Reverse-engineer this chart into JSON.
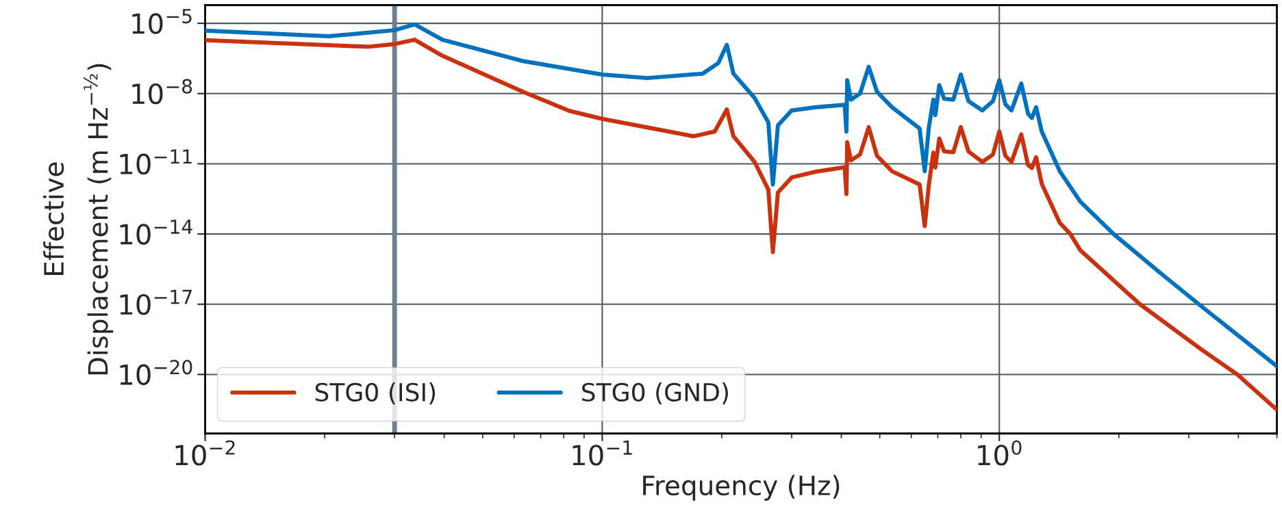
{
  "chart_data": {
    "type": "line",
    "xlabel": "Frequency (Hz)",
    "ylabel": "Effective\nDisplacement (m Hz$^{−½}$)",
    "log": "xy",
    "xlim": [
      0.01,
      5.0
    ],
    "ylim": [
      3e-23,
      6e-05
    ],
    "xticks": [
      {
        "value": 0.01,
        "label": "10$^{−2}$"
      },
      {
        "value": 0.1,
        "label": "10$^{−1}$"
      },
      {
        "value": 1,
        "label": "10$^{0}$"
      }
    ],
    "yticks": [
      {
        "value": 1e-05,
        "label": "10$^{−5}$"
      },
      {
        "value": 1e-08,
        "label": "10$^{−8}$"
      },
      {
        "value": 1e-11,
        "label": "10$^{−11}$"
      },
      {
        "value": 1e-14,
        "label": "10$^{−14}$"
      },
      {
        "value": 1e-17,
        "label": "10$^{−17}$"
      },
      {
        "value": 1e-20,
        "label": "10$^{−20}$"
      }
    ],
    "grid": true,
    "legend": "bottom left",
    "marker": "none",
    "line_style": "solid",
    "ref_lines": [
      {
        "axis": "x",
        "value": 0.03,
        "color": "#708090"
      }
    ],
    "series": [
      {
        "name": "STG0 (ISI)",
        "color": "#c8320f",
        "x": [
          0.01,
          0.0257,
          0.03,
          0.0337,
          0.0396,
          0.0635,
          0.0828,
          0.1,
          0.17,
          0.192,
          0.206,
          0.214,
          0.242,
          0.262,
          0.269,
          0.277,
          0.3,
          0.345,
          0.408,
          0.412,
          0.414,
          0.423,
          0.446,
          0.469,
          0.492,
          0.537,
          0.63,
          0.649,
          0.664,
          0.682,
          0.69,
          0.706,
          0.726,
          0.766,
          0.8,
          0.836,
          0.906,
          0.964,
          1.0,
          1.036,
          1.073,
          1.136,
          1.181,
          1.208,
          1.238,
          1.279,
          1.42,
          1.51,
          1.6,
          2.26,
          3.18,
          3.99,
          4.99
        ],
        "values": [
          1.9e-06,
          1e-06,
          1.3e-06,
          2e-06,
          4.1e-07,
          1.15e-08,
          1.8e-09,
          8.3e-10,
          1.5e-10,
          2.4e-10,
          2.1e-09,
          1.5e-10,
          1.2e-11,
          7.9e-13,
          1.7e-15,
          5.9e-13,
          2.6e-12,
          4.6e-12,
          7.1e-12,
          5.1e-13,
          8.3e-11,
          1.4e-11,
          2.5e-11,
          3.7e-10,
          2.2e-11,
          4.8e-12,
          1.3e-12,
          2.2e-14,
          1.1e-12,
          3e-11,
          6.9e-12,
          1.2e-10,
          3.4e-11,
          3.1e-11,
          3.7e-10,
          3.4e-11,
          1.2e-11,
          2.5e-11,
          2.4e-10,
          2.2e-11,
          1.2e-11,
          1.8e-10,
          8.9e-12,
          6.6e-12,
          1.9e-11,
          1.4e-12,
          3e-14,
          1e-14,
          2e-15,
          1e-17,
          1.4e-19,
          9.5e-21,
          3.2e-22
        ]
      },
      {
        "name": "STG0 (GND)",
        "color": "#0072bd",
        "x": [
          0.01,
          0.0205,
          0.03,
          0.0337,
          0.0396,
          0.0635,
          0.1,
          0.13,
          0.179,
          0.196,
          0.206,
          0.214,
          0.242,
          0.262,
          0.269,
          0.277,
          0.3,
          0.345,
          0.408,
          0.412,
          0.414,
          0.423,
          0.446,
          0.469,
          0.492,
          0.537,
          0.63,
          0.649,
          0.664,
          0.682,
          0.69,
          0.706,
          0.726,
          0.766,
          0.8,
          0.836,
          0.906,
          0.964,
          1.0,
          1.036,
          1.073,
          1.136,
          1.181,
          1.208,
          1.238,
          1.279,
          1.42,
          1.6,
          1.94,
          2.54,
          3.18,
          4.99
        ],
        "values": [
          4.9e-06,
          2.8e-06,
          5.1e-06,
          9e-06,
          2e-06,
          2.4e-07,
          6.5e-08,
          4.6e-08,
          7.1e-08,
          2e-07,
          1.2e-06,
          7.1e-08,
          6.5e-09,
          5.9e-10,
          1.3e-12,
          4.4e-10,
          1.9e-09,
          2.6e-09,
          3.3e-09,
          2.4e-10,
          3.7e-08,
          5.5e-09,
          1e-08,
          1.4e-07,
          1.2e-08,
          2.6e-09,
          3.2e-10,
          4.8e-12,
          3.2e-10,
          5.5e-09,
          1.2e-09,
          2.3e-08,
          6e-09,
          5.5e-09,
          6.5e-08,
          4.8e-09,
          1.9e-09,
          4.8e-09,
          3.7e-08,
          3.5e-09,
          1.9e-09,
          2.7e-08,
          1.4e-09,
          9.1e-10,
          2.6e-09,
          2.4e-10,
          4.8e-12,
          2.4e-13,
          1e-14,
          2.2e-16,
          1e-17,
          2.3e-20
        ]
      }
    ]
  }
}
